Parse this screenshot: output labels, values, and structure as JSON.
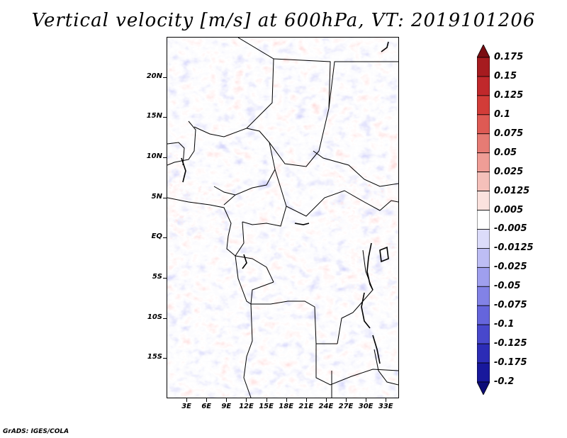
{
  "title": "Vertical velocity [m/s] at 600hPa, VT: 2019101206",
  "credit": "GrADS: IGES/COLA",
  "latitudes": [
    "20N",
    "15N",
    "10N",
    "5N",
    "EQ",
    "5S",
    "10S",
    "15S"
  ],
  "longitudes": [
    "3E",
    "6E",
    "9E",
    "12E",
    "15E",
    "18E",
    "21E",
    "24E",
    "27E",
    "30E",
    "33E"
  ],
  "colorbar": {
    "labels": [
      "0.175",
      "0.15",
      "0.125",
      "0.1",
      "0.075",
      "0.05",
      "0.025",
      "0.0125",
      "0.005",
      "-0.005",
      "-0.0125",
      "-0.025",
      "-0.05",
      "-0.075",
      "-0.1",
      "-0.125",
      "-0.175",
      "-0.2"
    ],
    "colors": [
      "#7a0d12",
      "#a61b1f",
      "#c0282b",
      "#d23c38",
      "#de5a54",
      "#e67b74",
      "#ef9d96",
      "#f5c0ba",
      "#fbe2de",
      "#ffffff",
      "#dcdcfa",
      "#bdbdf4",
      "#9f9fee",
      "#8282e6",
      "#6565dc",
      "#4848cc",
      "#2c2cb6",
      "#18189c",
      "#0d0d78"
    ]
  },
  "map": {
    "lon_range": [
      0,
      35
    ],
    "lat_range": [
      -20,
      25
    ],
    "field": "vertical velocity",
    "units": "m/s",
    "level": "600hPa",
    "valid_time": "2019101206"
  }
}
